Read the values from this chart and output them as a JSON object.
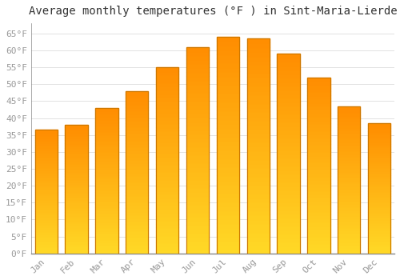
{
  "title": "Average monthly temperatures (°F ) in Sint-Maria-Lierde",
  "months": [
    "Jan",
    "Feb",
    "Mar",
    "Apr",
    "May",
    "Jun",
    "Jul",
    "Aug",
    "Sep",
    "Oct",
    "Nov",
    "Dec"
  ],
  "values": [
    36.5,
    38,
    43,
    48,
    55,
    61,
    64,
    63.5,
    59,
    52,
    43.5,
    38.5
  ],
  "bar_color": "#FFA500",
  "bar_edge_color": "#CC7700",
  "background_color": "#FFFFFF",
  "grid_color": "#DDDDDD",
  "ylim": [
    0,
    68
  ],
  "yticks": [
    0,
    5,
    10,
    15,
    20,
    25,
    30,
    35,
    40,
    45,
    50,
    55,
    60,
    65
  ],
  "title_fontsize": 10,
  "tick_fontsize": 8,
  "tick_font_color": "#999999",
  "title_color": "#333333"
}
